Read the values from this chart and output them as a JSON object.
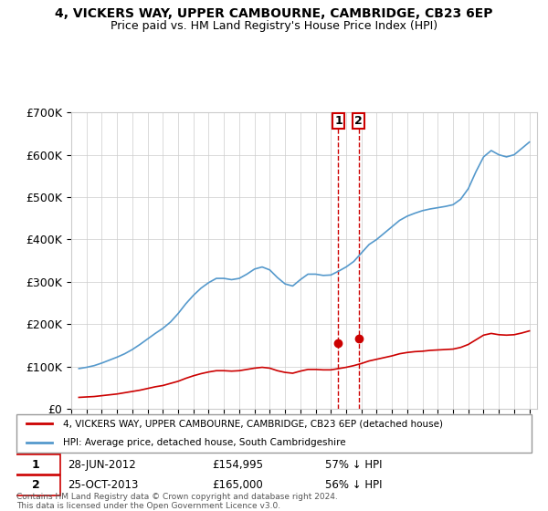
{
  "title_line1": "4, VICKERS WAY, UPPER CAMBOURNE, CAMBRIDGE, CB23 6EP",
  "title_line2": "Price paid vs. HM Land Registry's House Price Index (HPI)",
  "legend_label_red": "4, VICKERS WAY, UPPER CAMBOURNE, CAMBRIDGE, CB23 6EP (detached house)",
  "legend_label_blue": "HPI: Average price, detached house, South Cambridgeshire",
  "footer": "Contains HM Land Registry data © Crown copyright and database right 2024.\nThis data is licensed under the Open Government Licence v3.0.",
  "purchase1": {
    "label": "1",
    "date": "28-JUN-2012",
    "price": "£154,995",
    "pct": "57% ↓ HPI"
  },
  "purchase2": {
    "label": "2",
    "date": "25-OCT-2013",
    "price": "£165,000",
    "pct": "56% ↓ HPI"
  },
  "purchase1_x": 2012.49,
  "purchase1_y": 154995,
  "purchase2_x": 2013.81,
  "purchase2_y": 165000,
  "vline1_x": 2012.49,
  "vline2_x": 2013.81,
  "red_color": "#cc0000",
  "blue_color": "#5599cc",
  "marker_vline_color": "#cc0000",
  "ylim": [
    0,
    700000
  ],
  "xlim_start": 1995.0,
  "xlim_end": 2025.5,
  "ytick_values": [
    0,
    100000,
    200000,
    300000,
    400000,
    500000,
    600000,
    700000
  ],
  "ytick_labels": [
    "£0",
    "£100K",
    "£200K",
    "£300K",
    "£400K",
    "£500K",
    "£600K",
    "£700K"
  ],
  "hpi_data": {
    "years": [
      1995.5,
      1996.0,
      1996.5,
      1997.0,
      1997.5,
      1998.0,
      1998.5,
      1999.0,
      1999.5,
      2000.0,
      2000.5,
      2001.0,
      2001.5,
      2002.0,
      2002.5,
      2003.0,
      2003.5,
      2004.0,
      2004.5,
      2005.0,
      2005.5,
      2006.0,
      2006.5,
      2007.0,
      2007.5,
      2008.0,
      2008.5,
      2009.0,
      2009.5,
      2010.0,
      2010.5,
      2011.0,
      2011.5,
      2012.0,
      2012.5,
      2013.0,
      2013.5,
      2014.0,
      2014.5,
      2015.0,
      2015.5,
      2016.0,
      2016.5,
      2017.0,
      2017.5,
      2018.0,
      2018.5,
      2019.0,
      2019.5,
      2020.0,
      2020.5,
      2021.0,
      2021.5,
      2022.0,
      2022.5,
      2023.0,
      2023.5,
      2024.0,
      2024.5,
      2025.0
    ],
    "values": [
      95000,
      98000,
      102000,
      108000,
      115000,
      122000,
      130000,
      140000,
      152000,
      165000,
      178000,
      190000,
      205000,
      225000,
      248000,
      268000,
      285000,
      298000,
      308000,
      308000,
      305000,
      308000,
      318000,
      330000,
      335000,
      328000,
      310000,
      295000,
      290000,
      305000,
      318000,
      318000,
      315000,
      316000,
      325000,
      335000,
      348000,
      368000,
      388000,
      400000,
      415000,
      430000,
      445000,
      455000,
      462000,
      468000,
      472000,
      475000,
      478000,
      482000,
      495000,
      520000,
      560000,
      595000,
      610000,
      600000,
      595000,
      600000,
      615000,
      630000
    ]
  },
  "property_data": {
    "years": [
      1995.5,
      1996.0,
      1996.5,
      1997.0,
      1997.5,
      1998.0,
      1998.5,
      1999.0,
      1999.5,
      2000.0,
      2000.5,
      2001.0,
      2001.5,
      2002.0,
      2002.5,
      2003.0,
      2003.5,
      2004.0,
      2004.5,
      2005.0,
      2005.5,
      2006.0,
      2006.5,
      2007.0,
      2007.5,
      2008.0,
      2008.5,
      2009.0,
      2009.5,
      2010.0,
      2010.5,
      2011.0,
      2011.5,
      2012.0,
      2012.5,
      2013.0,
      2013.5,
      2014.0,
      2014.5,
      2015.0,
      2015.5,
      2016.0,
      2016.5,
      2017.0,
      2017.5,
      2018.0,
      2018.5,
      2019.0,
      2019.5,
      2020.0,
      2020.5,
      2021.0,
      2021.5,
      2022.0,
      2022.5,
      2023.0,
      2023.5,
      2024.0,
      2024.5,
      2025.0
    ],
    "values": [
      27000,
      28000,
      29000,
      31000,
      33000,
      35000,
      38000,
      41000,
      44000,
      48000,
      52000,
      55000,
      60000,
      65000,
      72000,
      78000,
      83000,
      87000,
      90000,
      90000,
      89000,
      90000,
      93000,
      96000,
      98000,
      96000,
      90000,
      86000,
      84000,
      89000,
      93000,
      93000,
      92000,
      92000,
      95000,
      98000,
      102000,
      107000,
      113000,
      117000,
      121000,
      125000,
      130000,
      133000,
      135000,
      136000,
      138000,
      139000,
      140000,
      141000,
      145000,
      152000,
      163000,
      174000,
      178000,
      175000,
      174000,
      175000,
      179000,
      184000
    ]
  }
}
